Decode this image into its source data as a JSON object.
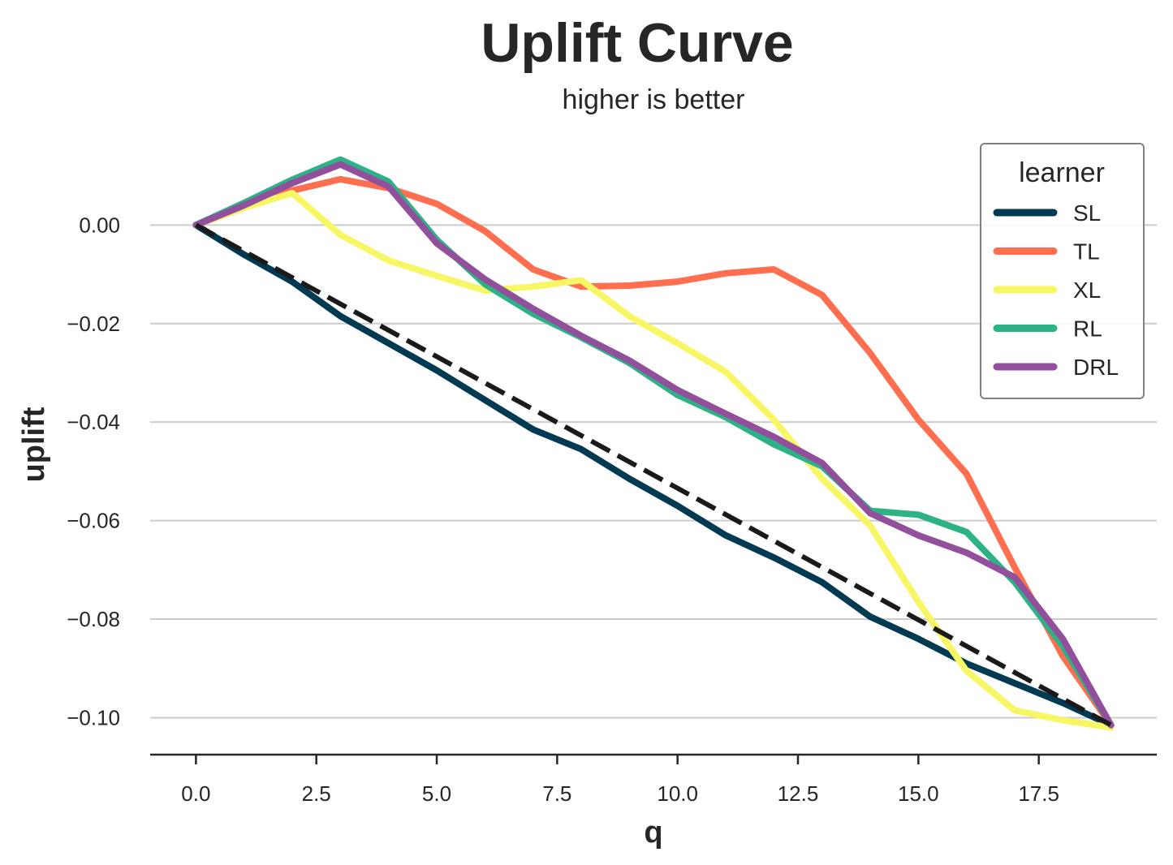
{
  "chart_data": {
    "type": "line",
    "title": "Uplift Curve",
    "subtitle": "higher is better",
    "xlabel": "q",
    "ylabel": "uplift",
    "xlim": [
      -0.95,
      19.95
    ],
    "ylim": [
      -0.1075,
      0.0185
    ],
    "xticks": [
      0,
      2.5,
      5,
      7.5,
      10,
      12.5,
      15,
      17.5
    ],
    "xtick_labels": [
      "0.0",
      "2.5",
      "5.0",
      "7.5",
      "10.0",
      "12.5",
      "15.0",
      "17.5"
    ],
    "yticks": [
      0,
      -0.02,
      -0.04,
      -0.06,
      -0.08,
      -0.1
    ],
    "ytick_labels": [
      "0.00",
      "−0.02",
      "−0.04",
      "−0.06",
      "−0.08",
      "−0.10"
    ],
    "grid": "horizontal",
    "legend": {
      "title": "learner",
      "placement": "top-right"
    },
    "x": [
      0,
      1,
      2,
      3,
      4,
      5,
      6,
      7,
      8,
      9,
      10,
      11,
      12,
      13,
      14,
      15,
      16,
      17,
      18,
      19
    ],
    "baseline": {
      "style": "dashed",
      "color": "#1a1a1a",
      "x": [
        0,
        19
      ],
      "values": [
        0,
        -0.1015
      ]
    },
    "series": [
      {
        "name": "SL",
        "color": "#003a52",
        "values": [
          0,
          -0.006,
          -0.0115,
          -0.0185,
          -0.024,
          -0.0295,
          -0.0355,
          -0.0415,
          -0.0455,
          -0.0515,
          -0.057,
          -0.063,
          -0.0675,
          -0.0725,
          -0.0795,
          -0.084,
          -0.089,
          -0.093,
          -0.097,
          -0.1015
        ]
      },
      {
        "name": "TL",
        "color": "#ff6e4e",
        "values": [
          0,
          0.0035,
          0.007,
          0.0093,
          0.0075,
          0.0043,
          -0.0012,
          -0.009,
          -0.0125,
          -0.0123,
          -0.0115,
          -0.0098,
          -0.009,
          -0.0142,
          -0.026,
          -0.0395,
          -0.0505,
          -0.0695,
          -0.0875,
          -0.1015
        ]
      },
      {
        "name": "XL",
        "color": "#f7f766",
        "values": [
          0,
          0.0035,
          0.0065,
          -0.002,
          -0.0072,
          -0.0103,
          -0.0133,
          -0.0125,
          -0.0112,
          -0.0185,
          -0.024,
          -0.0298,
          -0.0395,
          -0.0515,
          -0.061,
          -0.0765,
          -0.0905,
          -0.0985,
          -0.1005,
          -0.102
        ]
      },
      {
        "name": "RL",
        "color": "#2db286",
        "values": [
          0,
          0.0045,
          0.0092,
          0.0133,
          0.0088,
          -0.003,
          -0.012,
          -0.018,
          -0.0228,
          -0.028,
          -0.0345,
          -0.039,
          -0.0445,
          -0.049,
          -0.058,
          -0.0588,
          -0.0623,
          -0.0725,
          -0.0855,
          -0.1015
        ]
      },
      {
        "name": "DRL",
        "color": "#924f9c",
        "values": [
          0,
          0.004,
          0.0085,
          0.0123,
          0.0078,
          -0.0037,
          -0.011,
          -0.017,
          -0.0225,
          -0.0275,
          -0.0335,
          -0.0383,
          -0.043,
          -0.0483,
          -0.0585,
          -0.063,
          -0.0665,
          -0.0715,
          -0.084,
          -0.1015
        ]
      }
    ]
  }
}
